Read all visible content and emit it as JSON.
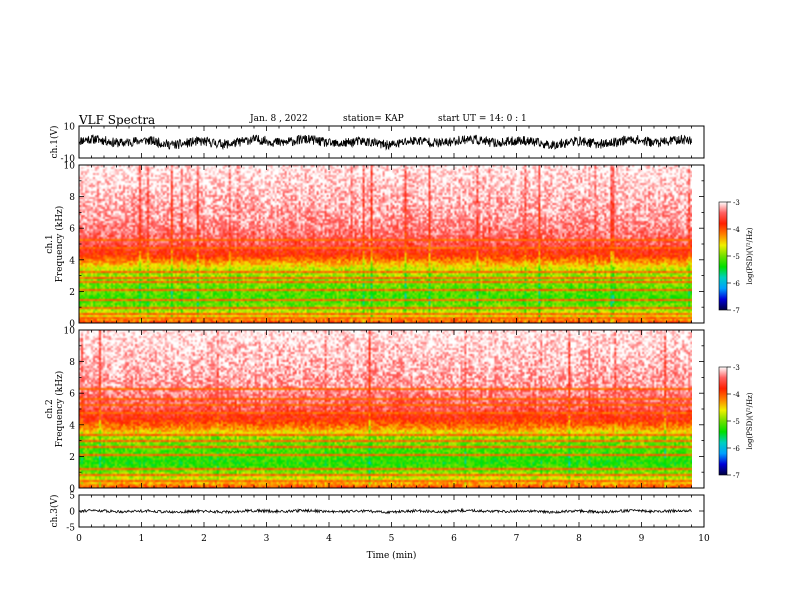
{
  "header": {
    "title": "VLF Spectra",
    "date": "Jan. 8 , 2022",
    "station": "station= KAP",
    "start": "start UT = 14: 0 : 1"
  },
  "chart_data": [
    {
      "type": "line",
      "panel": "ch1-waveform",
      "ylabel": "ch.1(V)",
      "ylim": [
        -10,
        10
      ],
      "yticks": [
        10,
        -10
      ],
      "xlim": [
        0,
        10
      ],
      "series": [
        {
          "x_range": [
            0,
            9.8
          ],
          "envelope_min": -3.5,
          "envelope_max": 3.5,
          "color": "#000000"
        }
      ]
    },
    {
      "type": "heatmap",
      "panel": "ch1-spectrogram",
      "ylabel": "ch.1\nFrequency (kHz)",
      "ylim": [
        0,
        10
      ],
      "yticks": [
        0,
        2,
        4,
        6,
        8,
        10
      ],
      "xlim": [
        0,
        10
      ],
      "data_x_range": [
        0,
        9.8
      ],
      "scale": "log(PSD)",
      "zlim": [
        -7,
        -3
      ],
      "profile": [
        {
          "f": 0.0,
          "v": -4.0
        },
        {
          "f": 0.4,
          "v": -4.6
        },
        {
          "f": 1.0,
          "v": -5.0
        },
        {
          "f": 1.5,
          "v": -5.2
        },
        {
          "f": 2.5,
          "v": -5.0
        },
        {
          "f": 3.3,
          "v": -4.8
        },
        {
          "f": 3.8,
          "v": -4.3
        },
        {
          "f": 4.3,
          "v": -3.85
        },
        {
          "f": 5.0,
          "v": -3.5
        },
        {
          "f": 6.5,
          "v": -3.25
        },
        {
          "f": 10.0,
          "v": -3.0
        }
      ],
      "lines_khz": [
        0.25,
        0.55,
        0.9,
        1.45,
        2.05,
        2.6,
        2.85,
        3.2,
        4.8,
        5.3
      ]
    },
    {
      "type": "heatmap",
      "panel": "ch2-spectrogram",
      "ylabel": "ch.2\nFrequency (kHz)",
      "ylim": [
        0,
        10
      ],
      "yticks": [
        0,
        2,
        4,
        6,
        8,
        10
      ],
      "xlim": [
        0,
        10
      ],
      "data_x_range": [
        0,
        9.8
      ],
      "scale": "log(PSD)",
      "zlim": [
        -7,
        -3
      ],
      "profile": [
        {
          "f": 0.0,
          "v": -4.0
        },
        {
          "f": 0.4,
          "v": -4.6
        },
        {
          "f": 1.0,
          "v": -5.0
        },
        {
          "f": 1.5,
          "v": -5.3
        },
        {
          "f": 2.5,
          "v": -5.1
        },
        {
          "f": 3.2,
          "v": -4.9
        },
        {
          "f": 3.7,
          "v": -4.3
        },
        {
          "f": 4.3,
          "v": -3.85
        },
        {
          "f": 5.0,
          "v": -3.5
        },
        {
          "f": 6.5,
          "v": -3.25
        },
        {
          "f": 10.0,
          "v": -3.0
        }
      ],
      "lines_khz": [
        0.4,
        0.8,
        1.2,
        2.0,
        2.55,
        3.0,
        3.3,
        4.8,
        5.2,
        5.7,
        6.3
      ]
    },
    {
      "type": "line",
      "panel": "ch3-waveform",
      "ylabel": "ch.3(V)",
      "ylim": [
        -5,
        5
      ],
      "yticks": [
        5,
        0,
        -5
      ],
      "xlim": [
        0,
        10
      ],
      "xlabel": "Time (min)",
      "xticks": [
        0,
        1,
        2,
        3,
        4,
        5,
        6,
        7,
        8,
        9,
        10
      ],
      "series": [
        {
          "x_range": [
            0,
            9.8
          ],
          "envelope_min": -0.6,
          "envelope_max": 0.4,
          "color": "#000000"
        }
      ]
    }
  ],
  "colorbar": {
    "label": "log(PSD)(V²/Hz)",
    "ticks": [
      -3,
      -4,
      -5,
      -6,
      -7
    ],
    "stops": [
      "#000040",
      "#0000d8",
      "#00a0ff",
      "#00d0c0",
      "#00e000",
      "#70e000",
      "#f0f000",
      "#ff8000",
      "#ff2000",
      "#ff6060",
      "#ffffff"
    ]
  }
}
